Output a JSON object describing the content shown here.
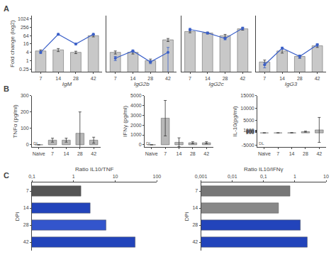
{
  "chart_data": [
    {
      "type": "bar",
      "title": "A",
      "categories": [
        "7",
        "14",
        "28",
        "42"
      ],
      "xlabel": "IgM",
      "ylabel": "Fold change (log2)",
      "log": "y",
      "grid": false,
      "ylim": [
        0.15,
        1800
      ],
      "yticks": [
        0.25,
        1,
        4,
        16,
        64,
        256,
        1024
      ],
      "series": [
        {
          "type": "bar",
          "color": "#c8c8c8",
          "values": [
            5,
            6,
            4,
            64
          ],
          "errors": [
            1.0,
            1.5,
            0.8,
            12
          ]
        },
        {
          "type": "line",
          "color": "#3a5fc8",
          "marker": "circle",
          "values": [
            4,
            80,
            16,
            80
          ],
          "errors": [
            0.8,
            12,
            2,
            12
          ]
        }
      ]
    },
    {
      "type": "bar",
      "categories": [
        "7",
        "14",
        "28",
        "42"
      ],
      "xlabel": "IgG2b",
      "log": "y",
      "grid": false,
      "tick_labels": "x",
      "ylim": [
        0.15,
        1800
      ],
      "yticks": [
        0.25,
        1,
        4,
        16,
        64,
        256,
        1024
      ],
      "series": [
        {
          "type": "bar",
          "color": "#c8c8c8",
          "values": [
            4,
            4,
            1,
            32
          ],
          "errors": [
            1.0,
            1.0,
            0.3,
            8
          ]
        },
        {
          "type": "line",
          "color": "#3a5fc8",
          "marker": "circle",
          "values": [
            1.5,
            5,
            0.8,
            4
          ],
          "errors": [
            0.5,
            1.0,
            0.2,
            5
          ]
        }
      ]
    },
    {
      "type": "bar",
      "categories": [
        "7",
        "14",
        "28",
        "42"
      ],
      "xlabel": "IgG2c",
      "log": "y",
      "grid": false,
      "tick_labels": "x",
      "ylim": [
        0.15,
        1800
      ],
      "yticks": [
        0.25,
        1,
        4,
        16,
        64,
        256,
        1024
      ],
      "series": [
        {
          "type": "bar",
          "color": "#c8c8c8",
          "values": [
            128,
            100,
            64,
            200
          ],
          "errors": [
            25,
            15,
            15,
            40
          ]
        },
        {
          "type": "line",
          "color": "#3a5fc8",
          "marker": "circle",
          "values": [
            180,
            100,
            40,
            220
          ],
          "errors": [
            35,
            15,
            8,
            45
          ]
        }
      ]
    },
    {
      "type": "bar",
      "categories": [
        "7",
        "14",
        "28",
        "42"
      ],
      "xlabel": "IgG3",
      "log": "y",
      "grid": false,
      "tick_labels": "x",
      "ylim": [
        0.15,
        1800
      ],
      "yticks": [
        0.25,
        1,
        4,
        16,
        64,
        256,
        1024
      ],
      "series": [
        {
          "type": "bar",
          "color": "#c8c8c8",
          "values": [
            0.8,
            5,
            2,
            12
          ],
          "errors": [
            0.3,
            1.5,
            0.5,
            3
          ]
        },
        {
          "type": "line",
          "color": "#3a5fc8",
          "marker": "circle",
          "values": [
            0.5,
            8,
            2,
            14
          ],
          "errors": [
            0.2,
            1.5,
            0.5,
            3
          ]
        }
      ]
    },
    {
      "type": "bar",
      "title": "B",
      "annotations": [
        "DL"
      ],
      "categories": [
        "Naive",
        "7",
        "14",
        "28",
        "42"
      ],
      "ylabel": "TNFα (pg/ml)",
      "grid": false,
      "color": "#b8b8b8",
      "values": [
        0,
        28,
        28,
        70,
        28
      ],
      "errors": [
        0,
        12,
        12,
        130,
        18
      ],
      "ylim": [
        -15,
        300
      ],
      "yticks": [
        0,
        100,
        200,
        300
      ]
    },
    {
      "type": "bar",
      "annotations": [
        "DL"
      ],
      "categories": [
        "Naive",
        "7",
        "14",
        "28",
        "42"
      ],
      "ylabel": "IFNγ (pg/ml)",
      "grid": false,
      "color": "#b8b8b8",
      "values": [
        0,
        2700,
        250,
        200,
        200
      ],
      "errors": [
        0,
        1800,
        450,
        100,
        100
      ],
      "ylim": [
        -250,
        5000
      ],
      "yticks": [
        0,
        1000,
        2000,
        3000,
        4000,
        5000
      ]
    },
    {
      "type": "bar",
      "annotations": [
        "DL"
      ],
      "categories": [
        "Naive",
        "7",
        "14",
        "28",
        "42"
      ],
      "ylabel": "IL-10(pg/ml)",
      "grid": false,
      "color": "#b8b8b8",
      "values": [
        0,
        10,
        50,
        500,
        1200
      ],
      "errors": [
        0,
        5,
        30,
        200,
        5000
      ],
      "ylim": [
        -5750,
        15000
      ],
      "yticks": [
        -5000,
        200,
        400,
        600,
        800,
        1000,
        5000,
        10000,
        15000
      ]
    },
    {
      "type": "bar",
      "title": "C",
      "orientation": "horizontal",
      "categories": [
        "7",
        "14",
        "28",
        "42"
      ],
      "xlabel": "Ratio IL10/TNF",
      "ylabel": "DPi",
      "log": "x",
      "grid": false,
      "values": [
        1.5,
        2.5,
        6,
        30
      ],
      "colors": [
        "#555555",
        "#2244bb",
        "#3355cc",
        "#2244bb"
      ],
      "xlim": [
        0.1,
        100
      ],
      "xticks": [
        {
          "value": 0.1,
          "label": "0,1"
        },
        1,
        10,
        100
      ]
    },
    {
      "type": "bar",
      "orientation": "horizontal",
      "categories": [
        "7",
        "14",
        "28",
        "42"
      ],
      "xlabel": "Ratio IL10/IFNγ",
      "ylabel": "DPi",
      "log": "x",
      "grid": false,
      "values": [
        0.7,
        0.3,
        1.5,
        2.5
      ],
      "colors": [
        "#777777",
        "#888888",
        "#2244bb",
        "#2244bb"
      ],
      "xlim": [
        0.001,
        10
      ],
      "xticks": [
        {
          "value": 0.001,
          "label": "0,001"
        },
        {
          "value": 0.01,
          "label": "0,01"
        },
        {
          "value": 0.1,
          "label": "0,1"
        },
        1,
        10
      ]
    }
  ]
}
